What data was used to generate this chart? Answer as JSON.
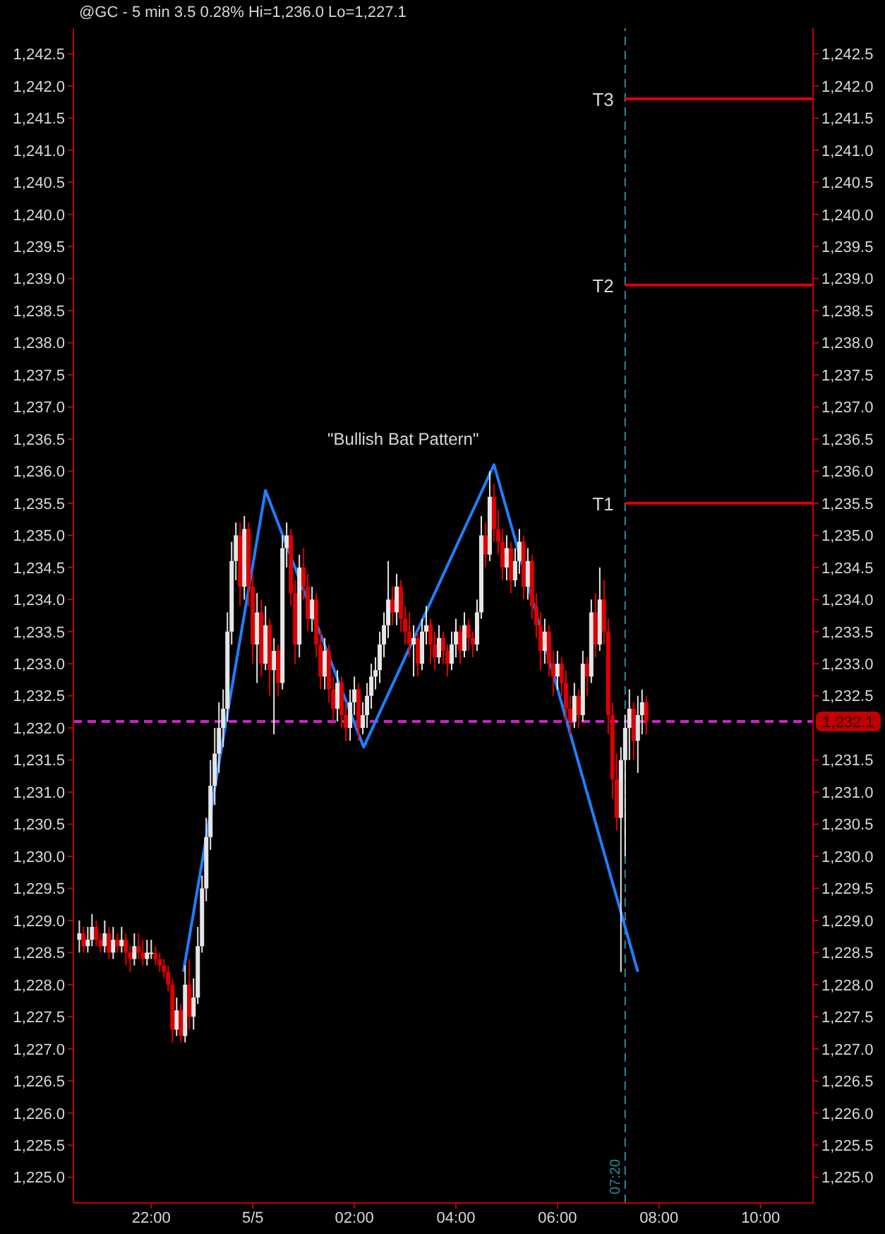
{
  "chart_data": {
    "type": "candlestick",
    "title": "@GC - 5 min 3.5 0.28% Hi=1,236.0 Lo=1,227.1",
    "colors": [
      "#e6e6e6",
      "#dd0000",
      "#e6e6e6",
      "#e6e6e6",
      "#dd0000",
      "#dd0000",
      "#e6e6e6",
      "#dd0000",
      "#e6e6e6",
      "#dd0000",
      "#e6e6e6",
      "#dd0000",
      "#dd0000",
      "#e6e6e6",
      "#dd0000",
      "#dd0000",
      "#e6e6e6",
      "#e6e6e6",
      "#dd0000",
      "#dd0000",
      "#dd0000",
      "#dd0000",
      "#dd0000",
      "#e6e6e6",
      "#dd0000",
      "#e6e6e6",
      "#dd0000",
      "#e6e6e6",
      "#e6e6e6",
      "#e6e6e6",
      "#e6e6e6",
      "#e6e6e6",
      "#e6e6e6",
      "#e6e6e6",
      "#e6e6e6",
      "#e6e6e6",
      "#e6e6e6",
      "#e6e6e6",
      "#dd0000",
      "#e6e6e6",
      "#dd0000",
      "#dd0000",
      "#e6e6e6",
      "#dd0000",
      "#e6e6e6",
      "#dd0000",
      "#e6e6e6",
      "#dd0000",
      "#e6e6e6",
      "#e6e6e6",
      "#dd0000",
      "#dd0000",
      "#e6e6e6",
      "#dd0000",
      "#dd0000",
      "#e6e6e6",
      "#dd0000",
      "#dd0000",
      "#e6e6e6",
      "#dd0000",
      "#dd0000",
      "#e6e6e6",
      "#dd0000",
      "#dd0000",
      "#e6e6e6",
      "#e6e6e6",
      "#dd0000",
      "#e6e6e6",
      "#e6e6e6",
      "#e6e6e6",
      "#e6e6e6",
      "#e6e6e6",
      "#e6e6e6",
      "#e6e6e6",
      "#dd0000",
      "#e6e6e6",
      "#dd0000",
      "#dd0000",
      "#dd0000",
      "#e6e6e6",
      "#dd0000",
      "#e6e6e6",
      "#e6e6e6",
      "#dd0000",
      "#dd0000",
      "#e6e6e6",
      "#dd0000",
      "#dd0000",
      "#e6e6e6",
      "#e6e6e6",
      "#dd0000",
      "#e6e6e6",
      "#dd0000",
      "#dd0000",
      "#e6e6e6",
      "#e6e6e6",
      "#dd0000",
      "#e6e6e6",
      "#dd0000",
      "#dd0000",
      "#dd0000",
      "#e6e6e6",
      "#dd0000",
      "#e6e6e6",
      "#e6e6e6",
      "#dd0000",
      "#e6e6e6",
      "#dd0000",
      "#dd0000",
      "#dd0000",
      "#e6e6e6",
      "#dd0000",
      "#dd0000",
      "#e6e6e6",
      "#dd0000",
      "#dd0000",
      "#dd0000",
      "#e6e6e6",
      "#dd0000",
      "#e6e6e6",
      "#dd0000",
      "#e6e6e6",
      "#dd0000",
      "#e6e6e6",
      "#dd0000",
      "#dd0000",
      "#dd0000",
      "#dd0000",
      "#e6e6e6",
      "#e6e6e6",
      "#e6e6e6",
      "#dd0000",
      "#e6e6e6",
      "#e6e6e6",
      "#dd0000"
    ],
    "x": [
      "--05-04T20:35",
      "--05-04T20:40",
      "--05-04T20:45",
      "--05-04T20:50",
      "--05-04T20:55",
      "--05-04T21:00",
      "--05-04T21:05",
      "--05-04T21:10",
      "--05-04T21:15",
      "--05-04T21:20",
      "--05-04T21:25",
      "--05-04T21:30",
      "--05-04T21:35",
      "--05-04T21:40",
      "--05-04T21:45",
      "--05-04T21:50",
      "--05-04T21:55",
      "--05-04T22:00",
      "--05-04T22:05",
      "--05-04T22:10",
      "--05-04T22:15",
      "--05-04T22:20",
      "--05-04T22:25",
      "--05-04T22:30",
      "--05-04T22:35",
      "--05-04T22:40",
      "--05-04T22:45",
      "--05-04T22:50",
      "--05-04T22:55",
      "--05-04T23:00",
      "--05-04T23:05",
      "--05-04T23:10",
      "--05-04T23:15",
      "--05-04T23:20",
      "--05-04T23:25",
      "--05-04T23:30",
      "--05-04T23:35",
      "--05-04T23:40",
      "--05-04T23:45",
      "--05-04T23:50",
      "--05-04T23:55",
      "--05-05T00:00",
      "--05-05T00:05",
      "--05-05T00:10",
      "--05-05T00:15",
      "--05-05T00:20",
      "--05-05T00:25",
      "--05-05T00:30",
      "--05-05T00:35",
      "--05-05T00:40",
      "--05-05T00:45",
      "--05-05T00:50",
      "--05-05T00:55",
      "--05-05T01:00",
      "--05-05T01:05",
      "--05-05T01:10",
      "--05-05T01:15",
      "--05-05T01:20",
      "--05-05T01:25",
      "--05-05T01:30",
      "--05-05T01:35",
      "--05-05T01:40",
      "--05-05T01:45",
      "--05-05T01:50",
      "--05-05T01:55",
      "--05-05T02:00",
      "--05-05T02:05",
      "--05-05T02:10",
      "--05-05T02:15",
      "--05-05T02:20",
      "--05-05T02:25",
      "--05-05T02:30",
      "--05-05T02:35",
      "--05-05T02:40",
      "--05-05T02:45",
      "--05-05T02:50",
      "--05-05T02:55",
      "--05-05T03:00",
      "--05-05T03:05",
      "--05-05T03:10",
      "--05-05T03:15",
      "--05-05T03:20",
      "--05-05T03:25",
      "--05-05T03:30",
      "--05-05T03:35",
      "--05-05T03:40",
      "--05-05T03:45",
      "--05-05T03:50",
      "--05-05T03:55",
      "--05-05T04:00",
      "--05-05T04:05",
      "--05-05T04:10",
      "--05-05T04:15",
      "--05-05T04:20",
      "--05-05T04:25",
      "--05-05T04:30",
      "--05-05T04:35",
      "--05-05T04:40",
      "--05-05T04:45",
      "--05-05T04:50",
      "--05-05T04:55",
      "--05-05T05:00",
      "--05-05T05:05",
      "--05-05T05:10",
      "--05-05T05:15",
      "--05-05T05:20",
      "--05-05T05:25",
      "--05-05T05:30",
      "--05-05T05:35",
      "--05-05T05:40",
      "--05-05T05:45",
      "--05-05T05:50",
      "--05-05T05:55",
      "--05-05T06:00",
      "--05-05T06:05",
      "--05-05T06:10",
      "--05-05T06:15",
      "--05-05T06:20",
      "--05-05T06:25",
      "--05-05T06:30",
      "--05-05T06:35",
      "--05-05T06:40",
      "--05-05T06:45",
      "--05-05T06:50",
      "--05-05T06:55",
      "--05-05T07:00",
      "--05-05T07:05",
      "--05-05T07:10",
      "--05-05T07:15",
      "--05-05T07:20",
      "--05-05T07:25",
      "--05-05T07:30",
      "--05-05T07:35",
      "--05-05T07:40",
      "--05-05T07:45"
    ],
    "ohlc": [
      [
        1228.7,
        1229.0,
        1228.5,
        1228.8
      ],
      [
        1228.8,
        1228.9,
        1228.5,
        1228.6
      ],
      [
        1228.6,
        1228.9,
        1228.5,
        1228.7
      ],
      [
        1228.7,
        1229.1,
        1228.6,
        1228.9
      ],
      [
        1228.9,
        1229.0,
        1228.6,
        1228.7
      ],
      [
        1228.7,
        1228.8,
        1228.5,
        1228.6
      ],
      [
        1228.6,
        1229.0,
        1228.5,
        1228.8
      ],
      [
        1228.8,
        1228.9,
        1228.4,
        1228.5
      ],
      [
        1228.5,
        1228.9,
        1228.4,
        1228.7
      ],
      [
        1228.7,
        1228.8,
        1228.5,
        1228.6
      ],
      [
        1228.6,
        1228.9,
        1228.5,
        1228.7
      ],
      [
        1228.7,
        1228.8,
        1228.3,
        1228.5
      ],
      [
        1228.5,
        1228.6,
        1228.2,
        1228.4
      ],
      [
        1228.4,
        1228.8,
        1228.3,
        1228.6
      ],
      [
        1228.6,
        1228.8,
        1228.4,
        1228.5
      ],
      [
        1228.5,
        1228.7,
        1228.3,
        1228.4
      ],
      [
        1228.4,
        1228.7,
        1228.3,
        1228.5
      ],
      [
        1228.5,
        1228.7,
        1228.4,
        1228.5
      ],
      [
        1228.5,
        1228.6,
        1228.3,
        1228.4
      ],
      [
        1228.4,
        1228.5,
        1228.2,
        1228.3
      ],
      [
        1228.3,
        1228.4,
        1228.1,
        1228.2
      ],
      [
        1228.2,
        1228.3,
        1227.9,
        1228.0
      ],
      [
        1228.0,
        1228.1,
        1227.1,
        1227.3
      ],
      [
        1227.3,
        1227.8,
        1227.2,
        1227.6
      ],
      [
        1227.6,
        1227.7,
        1227.1,
        1227.2
      ],
      [
        1227.2,
        1228.3,
        1227.1,
        1228.0
      ],
      [
        1228.0,
        1228.4,
        1227.3,
        1227.5
      ],
      [
        1227.5,
        1228.1,
        1227.3,
        1227.8
      ],
      [
        1227.8,
        1228.9,
        1227.7,
        1228.6
      ],
      [
        1228.6,
        1229.7,
        1228.5,
        1229.5
      ],
      [
        1229.5,
        1230.6,
        1229.3,
        1230.3
      ],
      [
        1230.3,
        1231.5,
        1230.1,
        1231.1
      ],
      [
        1231.1,
        1232.0,
        1230.8,
        1231.6
      ],
      [
        1231.6,
        1232.4,
        1231.3,
        1232.0
      ],
      [
        1232.0,
        1232.6,
        1231.7,
        1232.3
      ],
      [
        1232.3,
        1233.8,
        1232.1,
        1233.5
      ],
      [
        1233.5,
        1234.9,
        1233.3,
        1234.6
      ],
      [
        1234.6,
        1235.2,
        1234.3,
        1235.0
      ],
      [
        1235.0,
        1235.2,
        1233.9,
        1234.2
      ],
      [
        1234.2,
        1235.3,
        1234.0,
        1235.1
      ],
      [
        1235.1,
        1235.2,
        1233.9,
        1234.2
      ],
      [
        1234.2,
        1234.4,
        1233.0,
        1233.3
      ],
      [
        1233.3,
        1234.1,
        1232.7,
        1233.8
      ],
      [
        1233.8,
        1234.0,
        1232.8,
        1233.0
      ],
      [
        1233.0,
        1233.9,
        1232.9,
        1233.6
      ],
      [
        1233.6,
        1233.7,
        1232.5,
        1232.9
      ],
      [
        1232.9,
        1233.4,
        1231.9,
        1233.2
      ],
      [
        1233.2,
        1233.3,
        1232.5,
        1232.7
      ],
      [
        1232.7,
        1235.0,
        1232.6,
        1234.8
      ],
      [
        1234.8,
        1235.2,
        1234.5,
        1235.0
      ],
      [
        1235.0,
        1235.1,
        1233.9,
        1234.1
      ],
      [
        1234.1,
        1234.3,
        1233.0,
        1233.3
      ],
      [
        1233.3,
        1234.7,
        1233.1,
        1234.5
      ],
      [
        1234.5,
        1234.8,
        1234.0,
        1234.2
      ],
      [
        1234.2,
        1234.4,
        1233.5,
        1233.7
      ],
      [
        1233.7,
        1234.2,
        1233.5,
        1234.0
      ],
      [
        1234.0,
        1234.1,
        1233.1,
        1233.3
      ],
      [
        1233.3,
        1233.5,
        1232.6,
        1232.8
      ],
      [
        1232.8,
        1233.4,
        1232.6,
        1233.2
      ],
      [
        1233.2,
        1233.3,
        1232.4,
        1232.6
      ],
      [
        1232.6,
        1232.8,
        1232.1,
        1232.3
      ],
      [
        1232.3,
        1232.9,
        1232.1,
        1232.7
      ],
      [
        1232.7,
        1232.8,
        1232.0,
        1232.2
      ],
      [
        1232.2,
        1232.4,
        1231.8,
        1232.0
      ],
      [
        1232.0,
        1232.6,
        1231.8,
        1232.4
      ],
      [
        1232.4,
        1232.8,
        1232.2,
        1232.6
      ],
      [
        1232.6,
        1232.7,
        1231.8,
        1232.0
      ],
      [
        1232.0,
        1232.4,
        1231.9,
        1232.2
      ],
      [
        1232.2,
        1232.7,
        1232.0,
        1232.5
      ],
      [
        1232.5,
        1233.0,
        1232.3,
        1232.8
      ],
      [
        1232.8,
        1233.1,
        1232.6,
        1232.9
      ],
      [
        1232.9,
        1233.5,
        1232.7,
        1233.3
      ],
      [
        1233.3,
        1233.8,
        1233.1,
        1233.6
      ],
      [
        1233.6,
        1234.6,
        1233.4,
        1234.0
      ],
      [
        1234.0,
        1234.2,
        1233.6,
        1233.8
      ],
      [
        1233.8,
        1234.4,
        1233.6,
        1234.2
      ],
      [
        1234.2,
        1234.3,
        1233.5,
        1233.7
      ],
      [
        1233.7,
        1233.9,
        1233.3,
        1233.5
      ],
      [
        1233.5,
        1233.8,
        1233.1,
        1233.3
      ],
      [
        1233.3,
        1233.6,
        1232.8,
        1233.4
      ],
      [
        1233.4,
        1233.5,
        1232.8,
        1233.0
      ],
      [
        1233.0,
        1233.7,
        1232.9,
        1233.5
      ],
      [
        1233.5,
        1233.9,
        1233.3,
        1233.6
      ],
      [
        1233.6,
        1233.7,
        1233.0,
        1233.3
      ],
      [
        1233.3,
        1233.5,
        1232.9,
        1233.1
      ],
      [
        1233.1,
        1233.6,
        1233.0,
        1233.4
      ],
      [
        1233.4,
        1233.5,
        1233.0,
        1233.2
      ],
      [
        1233.2,
        1233.3,
        1232.8,
        1233.0
      ],
      [
        1233.0,
        1233.5,
        1232.9,
        1233.3
      ],
      [
        1233.3,
        1233.7,
        1233.1,
        1233.5
      ],
      [
        1233.5,
        1233.6,
        1233.0,
        1233.2
      ],
      [
        1233.2,
        1233.8,
        1233.1,
        1233.6
      ],
      [
        1233.6,
        1233.7,
        1233.2,
        1233.4
      ],
      [
        1233.4,
        1233.5,
        1233.1,
        1233.3
      ],
      [
        1233.3,
        1234.0,
        1233.2,
        1233.8
      ],
      [
        1233.8,
        1235.3,
        1233.7,
        1235.0
      ],
      [
        1235.0,
        1235.2,
        1234.5,
        1234.7
      ],
      [
        1234.7,
        1236.0,
        1234.6,
        1235.6
      ],
      [
        1235.6,
        1235.8,
        1234.9,
        1235.1
      ],
      [
        1235.1,
        1235.4,
        1234.7,
        1234.9
      ],
      [
        1234.9,
        1235.1,
        1234.3,
        1234.5
      ],
      [
        1234.5,
        1235.0,
        1234.3,
        1234.8
      ],
      [
        1234.8,
        1234.9,
        1234.1,
        1234.3
      ],
      [
        1234.3,
        1234.8,
        1234.2,
        1234.6
      ],
      [
        1234.6,
        1235.1,
        1234.4,
        1234.9
      ],
      [
        1234.9,
        1235.0,
        1234.0,
        1234.2
      ],
      [
        1234.2,
        1234.8,
        1234.0,
        1234.6
      ],
      [
        1234.6,
        1234.7,
        1233.7,
        1233.9
      ],
      [
        1233.9,
        1234.1,
        1233.4,
        1233.6
      ],
      [
        1233.6,
        1233.8,
        1232.9,
        1233.2
      ],
      [
        1233.2,
        1233.7,
        1233.0,
        1233.5
      ],
      [
        1233.5,
        1233.6,
        1232.8,
        1233.0
      ],
      [
        1233.0,
        1233.2,
        1232.5,
        1232.8
      ],
      [
        1232.8,
        1233.2,
        1232.6,
        1233.0
      ],
      [
        1233.0,
        1233.1,
        1232.5,
        1232.7
      ],
      [
        1232.7,
        1232.9,
        1232.1,
        1232.3
      ],
      [
        1232.3,
        1232.5,
        1231.9,
        1232.1
      ],
      [
        1232.1,
        1232.7,
        1232.0,
        1232.5
      ],
      [
        1232.5,
        1232.6,
        1232.0,
        1232.2
      ],
      [
        1232.2,
        1233.2,
        1232.1,
        1233.0
      ],
      [
        1233.0,
        1233.1,
        1232.5,
        1232.8
      ],
      [
        1232.8,
        1234.0,
        1232.7,
        1233.8
      ],
      [
        1233.8,
        1234.1,
        1233.1,
        1233.3
      ],
      [
        1233.3,
        1234.5,
        1233.2,
        1234.0
      ],
      [
        1234.0,
        1234.3,
        1233.3,
        1233.5
      ],
      [
        1233.5,
        1233.7,
        1231.9,
        1232.2
      ],
      [
        1232.2,
        1232.4,
        1230.9,
        1231.2
      ],
      [
        1231.2,
        1231.6,
        1230.4,
        1230.6
      ],
      [
        1230.6,
        1231.7,
        1228.2,
        1231.5
      ],
      [
        1231.5,
        1232.2,
        1230.0,
        1232.0
      ],
      [
        1232.0,
        1232.6,
        1231.5,
        1232.3
      ],
      [
        1232.3,
        1232.4,
        1231.5,
        1231.8
      ],
      [
        1231.8,
        1232.5,
        1231.3,
        1232.2
      ],
      [
        1232.2,
        1232.6,
        1231.9,
        1232.4
      ],
      [
        1232.4,
        1232.5,
        1231.9,
        1232.1
      ]
    ],
    "series": [
      {
        "type": "line",
        "color": "#1e7fff",
        "x": [
          "--05-04T22:38",
          "--05-05T00:15",
          "--05-05T02:11",
          "--05-05T04:45",
          "--05-05T07:35"
        ],
        "values": [
          1228.2,
          1235.7,
          1231.7,
          1236.1,
          1228.2
        ]
      },
      {
        "type": "line",
        "name": "T3",
        "color": "#e00000",
        "x": [
          "--05-05T07:20",
          "--05-05T11:02"
        ],
        "values": [
          1241.8,
          1241.8
        ]
      },
      {
        "type": "line",
        "name": "T2",
        "color": "#e00000",
        "x": [
          "--05-05T07:20",
          "--05-05T11:02"
        ],
        "values": [
          1238.9,
          1238.9
        ]
      },
      {
        "type": "line",
        "name": "T1",
        "color": "#e00000",
        "x": [
          "--05-05T07:20",
          "--05-05T11:02"
        ],
        "values": [
          1235.5,
          1235.5
        ]
      }
    ],
    "marker": "none",
    "ref_lines": [
      {
        "axis": "y",
        "value": 1232.1,
        "label": "1,232.1",
        "color": "#cc22cc",
        "line_style": "dashed"
      },
      {
        "axis": "x",
        "value": "--05-05T07:20",
        "label": "07:20",
        "color": "#2a8a9a",
        "line_style": "dashed"
      }
    ],
    "annotations": [
      "\"Bullish Bat Pattern\""
    ],
    "xlim": [
      "--05-04T20:28",
      "--05-05T11:02"
    ],
    "xticks": [
      {
        "value": "--05-04T22:00",
        "label": "22:00"
      },
      {
        "value": "--05-05T00:00",
        "label": "5/5"
      },
      {
        "value": "--05-05T02:00",
        "label": "02:00"
      },
      {
        "value": "--05-05T04:00",
        "label": "04:00"
      },
      {
        "value": "--05-05T06:00",
        "label": "06:00"
      },
      {
        "value": "--05-05T08:00",
        "label": "08:00"
      },
      {
        "value": "--05-05T10:00",
        "label": "10:00"
      }
    ],
    "ylim": [
      1224.6,
      1242.9
    ],
    "yticks": [
      {
        "value": 1225,
        "label": "1,225.0"
      },
      {
        "value": 1225.5,
        "label": "1,225.5"
      },
      {
        "value": 1226,
        "label": "1,226.0"
      },
      {
        "value": 1226.5,
        "label": "1,226.5"
      },
      {
        "value": 1227,
        "label": "1,227.0"
      },
      {
        "value": 1227.5,
        "label": "1,227.5"
      },
      {
        "value": 1228,
        "label": "1,228.0"
      },
      {
        "value": 1228.5,
        "label": "1,228.5"
      },
      {
        "value": 1229,
        "label": "1,229.0"
      },
      {
        "value": 1229.5,
        "label": "1,229.5"
      },
      {
        "value": 1230,
        "label": "1,230.0"
      },
      {
        "value": 1230.5,
        "label": "1,230.5"
      },
      {
        "value": 1231,
        "label": "1,231.0"
      },
      {
        "value": 1231.5,
        "label": "1,231.5"
      },
      {
        "value": 1232,
        "label": "1,232.0"
      },
      {
        "value": 1232.5,
        "label": "1,232.5"
      },
      {
        "value": 1233,
        "label": "1,233.0"
      },
      {
        "value": 1233.5,
        "label": "1,233.5"
      },
      {
        "value": 1234,
        "label": "1,234.0"
      },
      {
        "value": 1234.5,
        "label": "1,234.5"
      },
      {
        "value": 1235,
        "label": "1,235.0"
      },
      {
        "value": 1235.5,
        "label": "1,235.5"
      },
      {
        "value": 1236,
        "label": "1,236.0"
      },
      {
        "value": 1236.5,
        "label": "1,236.5"
      },
      {
        "value": 1237,
        "label": "1,237.0"
      },
      {
        "value": 1237.5,
        "label": "1,237.5"
      },
      {
        "value": 1238,
        "label": "1,238.0"
      },
      {
        "value": 1238.5,
        "label": "1,238.5"
      },
      {
        "value": 1239,
        "label": "1,239.0"
      },
      {
        "value": 1239.5,
        "label": "1,239.5"
      },
      {
        "value": 1240,
        "label": "1,240.0"
      },
      {
        "value": 1240.5,
        "label": "1,240.5"
      },
      {
        "value": 1241,
        "label": "1,241.0"
      },
      {
        "value": 1241.5,
        "label": "1,241.5"
      },
      {
        "value": 1242,
        "label": "1,242.0"
      },
      {
        "value": 1242.5,
        "label": "1,242.5"
      }
    ],
    "y2lim": [
      1224.6,
      1242.9
    ],
    "y2ticks": [
      {
        "value": 1225,
        "label": "1,225.0"
      },
      {
        "value": 1225.5,
        "label": "1,225.5"
      },
      {
        "value": 1226,
        "label": "1,226.0"
      },
      {
        "value": 1226.5,
        "label": "1,226.5"
      },
      {
        "value": 1227,
        "label": "1,227.0"
      },
      {
        "value": 1227.5,
        "label": "1,227.5"
      },
      {
        "value": 1228,
        "label": "1,228.0"
      },
      {
        "value": 1228.5,
        "label": "1,228.5"
      },
      {
        "value": 1229,
        "label": "1,229.0"
      },
      {
        "value": 1229.5,
        "label": "1,229.5"
      },
      {
        "value": 1230,
        "label": "1,230.0"
      },
      {
        "value": 1230.5,
        "label": "1,230.5"
      },
      {
        "value": 1231,
        "label": "1,231.0"
      },
      {
        "value": 1231.5,
        "label": "1,231.5"
      },
      {
        "value": 1232.5,
        "label": "1,232.5"
      },
      {
        "value": 1233,
        "label": "1,233.0"
      },
      {
        "value": 1233.5,
        "label": "1,233.5"
      },
      {
        "value": 1234,
        "label": "1,234.0"
      },
      {
        "value": 1234.5,
        "label": "1,234.5"
      },
      {
        "value": 1235,
        "label": "1,235.0"
      },
      {
        "value": 1235.5,
        "label": "1,235.5"
      },
      {
        "value": 1236,
        "label": "1,236.0"
      },
      {
        "value": 1236.5,
        "label": "1,236.5"
      },
      {
        "value": 1237,
        "label": "1,237.0"
      },
      {
        "value": 1237.5,
        "label": "1,237.5"
      },
      {
        "value": 1238,
        "label": "1,238.0"
      },
      {
        "value": 1238.5,
        "label": "1,238.5"
      },
      {
        "value": 1239,
        "label": "1,239.0"
      },
      {
        "value": 1239.5,
        "label": "1,239.5"
      },
      {
        "value": 1240,
        "label": "1,240.0"
      },
      {
        "value": 1240.5,
        "label": "1,240.5"
      },
      {
        "value": 1241,
        "label": "1,241.0"
      },
      {
        "value": 1241.5,
        "label": "1,241.5"
      },
      {
        "value": 1242,
        "label": "1,242.0"
      },
      {
        "value": 1242.5,
        "label": "1,242.5"
      }
    ]
  }
}
